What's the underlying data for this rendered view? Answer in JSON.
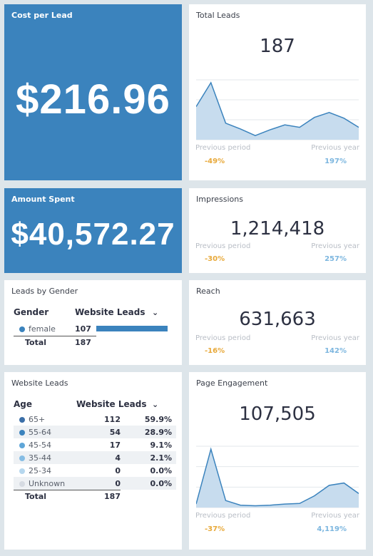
{
  "cost_per_lead": {
    "title": "Cost per Lead",
    "value": "$216.96"
  },
  "amount_spent": {
    "title": "Amount Spent",
    "value": "$40,572.27"
  },
  "total_leads": {
    "title": "Total Leads",
    "value": "187",
    "prev_period_label": "Previous period",
    "prev_period_pct": "-49%",
    "prev_year_label": "Previous year",
    "prev_year_pct": "197%",
    "sparkline": [
      4.0,
      6.9,
      2.0,
      1.3,
      0.5,
      1.2,
      1.8,
      1.5,
      2.7,
      3.3,
      2.6,
      1.5
    ]
  },
  "impressions": {
    "title": "Impressions",
    "value": "1,214,418",
    "prev_period_label": "Previous period",
    "prev_period_pct": "-30%",
    "prev_year_label": "Previous year",
    "prev_year_pct": "257%"
  },
  "reach": {
    "title": "Reach",
    "value": "631,663",
    "prev_period_label": "Previous period",
    "prev_period_pct": "-16%",
    "prev_year_label": "Previous year",
    "prev_year_pct": "142%"
  },
  "page_engagement": {
    "title": "Page Engagement",
    "value": "107,505",
    "prev_period_label": "Previous period",
    "prev_period_pct": "-37%",
    "prev_year_label": "Previous year",
    "prev_year_pct": "4,119%",
    "sparkline": [
      0.3,
      5.0,
      0.6,
      0.2,
      0.15,
      0.2,
      0.3,
      0.35,
      1.0,
      1.9,
      2.1,
      1.2
    ]
  },
  "leads_by_gender": {
    "title": "Leads by Gender",
    "col1": "Gender",
    "col2": "Website Leads",
    "sort_icon": "chevron-down",
    "rows": [
      {
        "label": "female",
        "value": "107",
        "color": "#3b83bd",
        "share": 1.0
      }
    ],
    "total_label": "Total",
    "total_value": "187"
  },
  "website_leads": {
    "title": "Website Leads",
    "col1": "Age",
    "col2": "Website Leads",
    "sort_icon": "chevron-down",
    "rows": [
      {
        "label": "65+",
        "value": "112",
        "pct": "59.9%",
        "color": "#3b6fa8"
      },
      {
        "label": "55-64",
        "value": "54",
        "pct": "28.9%",
        "color": "#3b83bd"
      },
      {
        "label": "45-54",
        "value": "17",
        "pct": "9.1%",
        "color": "#5fa6d8"
      },
      {
        "label": "35-44",
        "value": "4",
        "pct": "2.1%",
        "color": "#86bde4"
      },
      {
        "label": "25-34",
        "value": "0",
        "pct": "0.0%",
        "color": "#b6d7ee"
      },
      {
        "label": "Unknown",
        "value": "0",
        "pct": "0.0%",
        "color": "#d6dbe2"
      }
    ],
    "total_label": "Total",
    "total_value": "187"
  },
  "colors": {
    "accent": "#3b83bd",
    "orange": "#e8a93a",
    "light_blue": "#7cb6df"
  }
}
